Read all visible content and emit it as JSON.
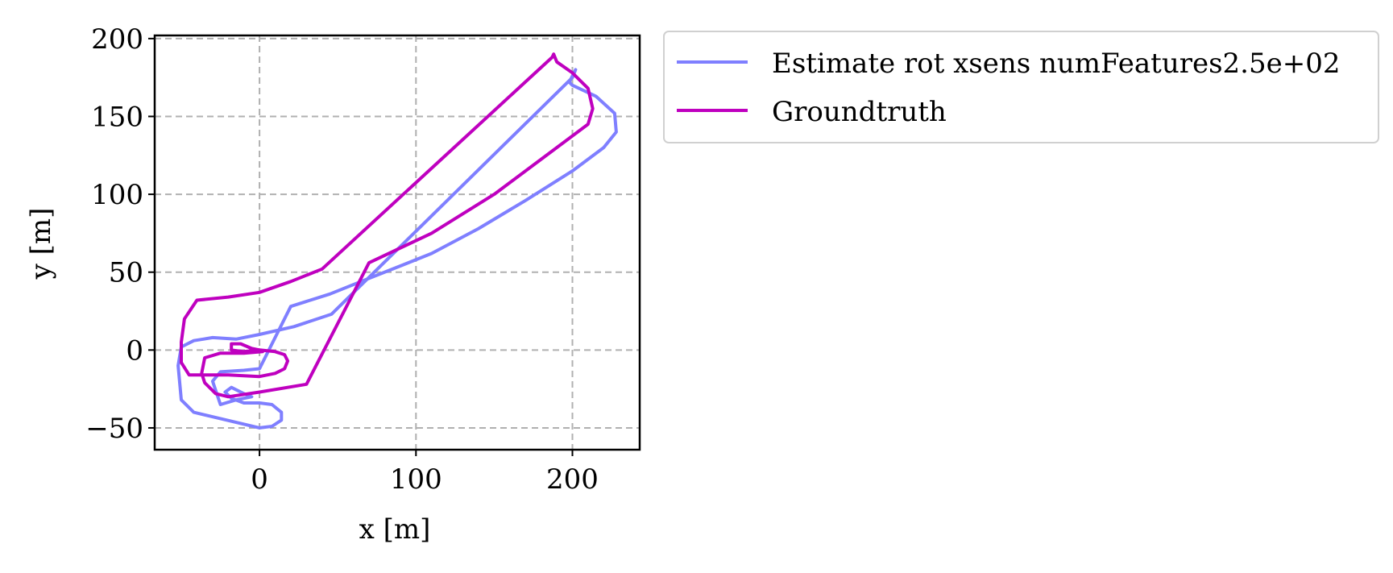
{
  "chart_data": {
    "type": "line",
    "title": "",
    "xlabel": "x [m]",
    "ylabel": "y [m]",
    "xlim": [
      -67,
      243
    ],
    "ylim": [
      -64,
      202
    ],
    "xticks": [
      0,
      100,
      200
    ],
    "xtick_labels": [
      "0",
      "100",
      "200"
    ],
    "yticks": [
      -50,
      0,
      50,
      100,
      150,
      200
    ],
    "ytick_labels": [
      "−50",
      "0",
      "50",
      "100",
      "150",
      "200"
    ],
    "grid": true,
    "legend_position": "outside-right-top",
    "series": [
      {
        "name": "Estimate rot xsens numFeatures2.5e+02",
        "color": "#7f7fff",
        "x": [
          202,
          200,
          46,
          22,
          0,
          -15,
          -30,
          -42,
          -50,
          -52,
          -50,
          -42,
          -25,
          0,
          8,
          14,
          14,
          8,
          0,
          -10,
          -18,
          -22,
          -18,
          -10,
          -5,
          -15,
          -25,
          -30,
          -25,
          -10,
          0,
          20,
          45,
          70,
          90,
          110,
          140,
          170,
          200,
          220,
          228,
          227,
          215,
          200,
          198,
          200,
          202
        ],
        "y": [
          180,
          175,
          23,
          15,
          10,
          7,
          8,
          6,
          2,
          -10,
          -32,
          -40,
          -44,
          -50,
          -49,
          -45,
          -40,
          -35,
          -34,
          -34,
          -31,
          -27,
          -24,
          -28,
          -30,
          -32,
          -35,
          -20,
          -14,
          -13,
          -12,
          28,
          36,
          46,
          54,
          62,
          78,
          96,
          115,
          130,
          140,
          152,
          163,
          170,
          172,
          176,
          180
        ]
      },
      {
        "name": "Groundtruth",
        "color": "#bf00bf",
        "x": [
          188,
          187,
          40,
          20,
          0,
          -20,
          -40,
          -48,
          -50,
          -50,
          -45,
          -20,
          0,
          10,
          16,
          18,
          16,
          10,
          0,
          -10,
          -18,
          -18,
          -12,
          -5,
          0,
          2,
          -10,
          -25,
          -35,
          -37,
          -35,
          -28,
          -20,
          0,
          30,
          70,
          110,
          150,
          190,
          210,
          213,
          210,
          200,
          190,
          188
        ],
        "y": [
          190,
          188,
          52,
          44,
          37,
          34,
          32,
          20,
          5,
          -8,
          -16,
          -16,
          -17,
          -15,
          -12,
          -7,
          -3,
          -1,
          0,
          -1,
          0,
          4,
          4,
          1,
          0,
          -1,
          -2,
          -2,
          -5,
          -15,
          -21,
          -28,
          -30,
          -27,
          -22,
          56,
          75,
          100,
          130,
          145,
          155,
          168,
          178,
          185,
          190
        ]
      }
    ]
  }
}
